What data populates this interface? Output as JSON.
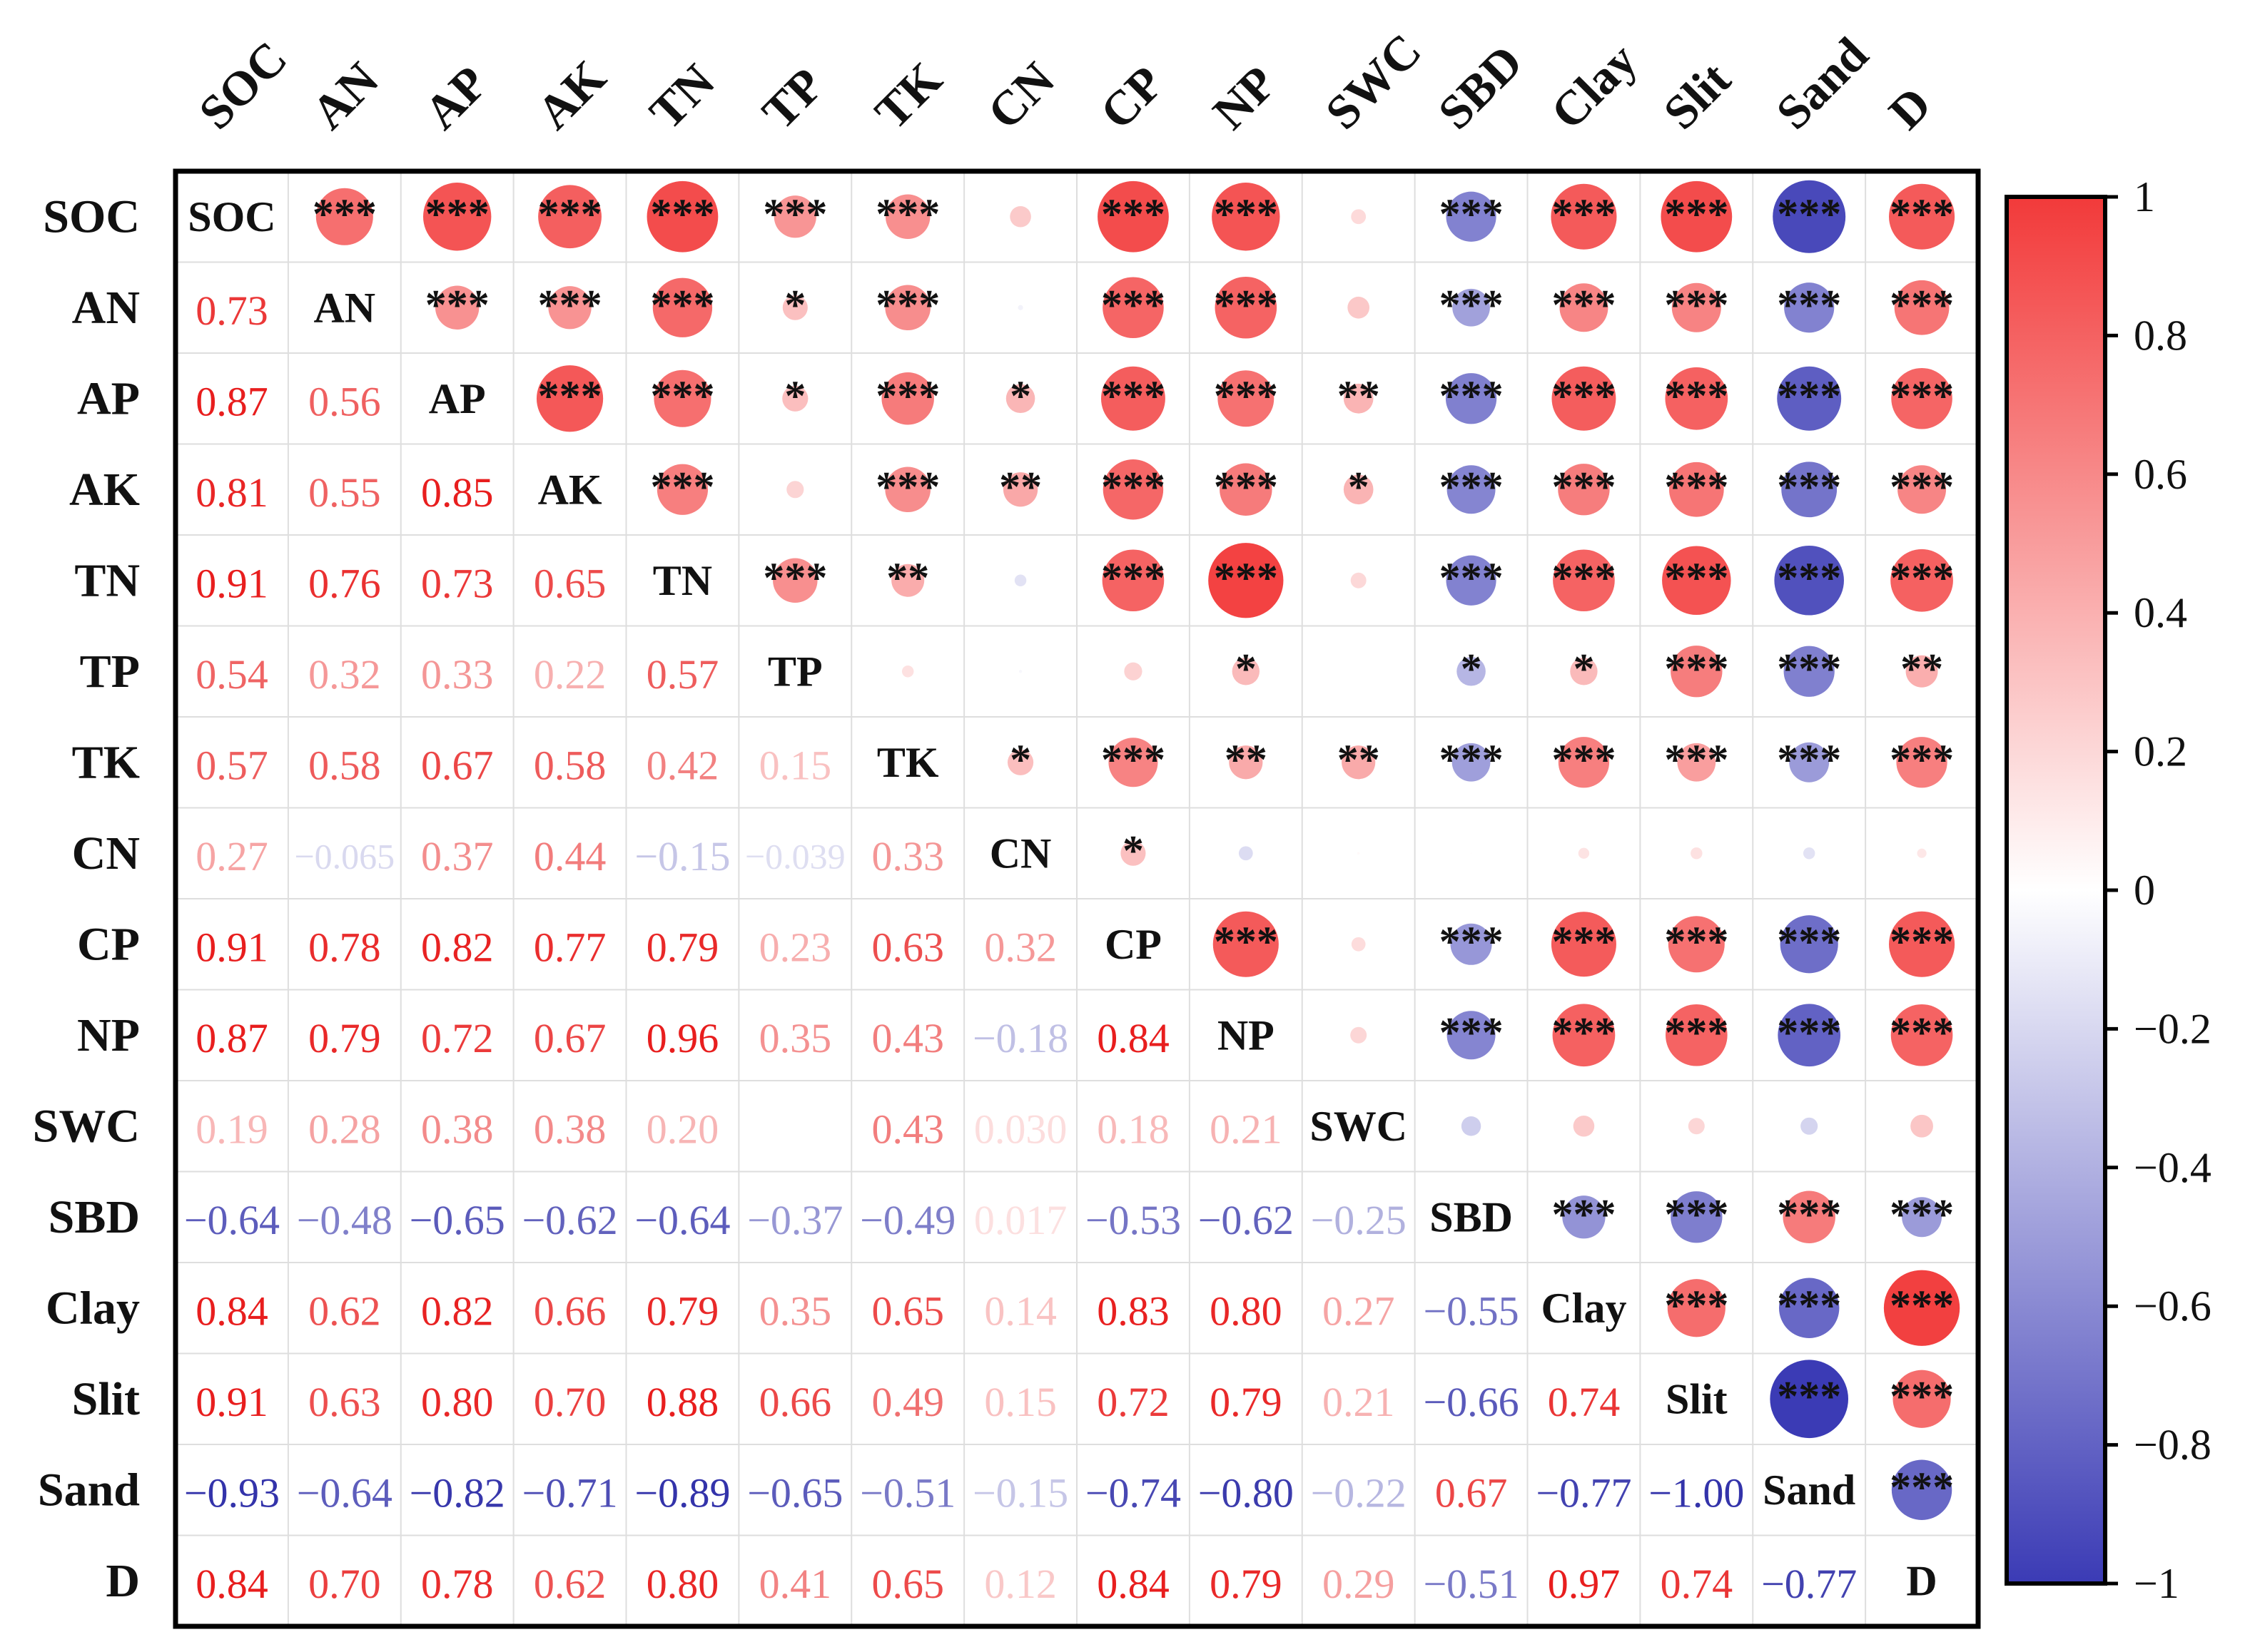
{
  "chart_data": {
    "type": "heatmap",
    "title": "",
    "variables": [
      "SOC",
      "AN",
      "AP",
      "AK",
      "TN",
      "TP",
      "TK",
      "CN",
      "CP",
      "NP",
      "SWC",
      "SBD",
      "Clay",
      "Slit",
      "Sand",
      "D"
    ],
    "correlation_matrix": [
      [
        1,
        0.73,
        0.87,
        0.81,
        0.91,
        0.54,
        0.57,
        0.27,
        0.91,
        0.87,
        0.19,
        -0.64,
        0.84,
        0.91,
        -0.93,
        0.84
      ],
      [
        0.73,
        1,
        0.56,
        0.55,
        0.76,
        0.32,
        0.58,
        -0.065,
        0.78,
        0.79,
        0.28,
        -0.48,
        0.62,
        0.63,
        -0.64,
        0.7
      ],
      [
        0.87,
        0.56,
        1,
        0.85,
        0.73,
        0.33,
        0.67,
        0.37,
        0.82,
        0.72,
        0.38,
        -0.65,
        0.82,
        0.8,
        -0.82,
        0.78
      ],
      [
        0.81,
        0.55,
        0.85,
        1,
        0.65,
        0.22,
        0.58,
        0.44,
        0.77,
        0.67,
        0.38,
        -0.62,
        0.66,
        0.7,
        -0.71,
        0.62
      ],
      [
        0.91,
        0.76,
        0.73,
        0.65,
        1,
        0.57,
        0.42,
        -0.15,
        0.79,
        0.96,
        0.2,
        -0.64,
        0.79,
        0.88,
        -0.89,
        0.8
      ],
      [
        0.54,
        0.32,
        0.33,
        0.22,
        0.57,
        1,
        0.15,
        -0.039,
        0.23,
        0.35,
        0.0,
        -0.37,
        0.35,
        0.66,
        -0.65,
        0.41
      ],
      [
        0.57,
        0.58,
        0.67,
        0.58,
        0.42,
        0.15,
        1,
        0.33,
        0.63,
        0.43,
        0.43,
        -0.49,
        0.65,
        0.49,
        -0.51,
        0.65
      ],
      [
        0.27,
        -0.065,
        0.37,
        0.44,
        -0.15,
        -0.039,
        0.33,
        1,
        0.32,
        -0.18,
        0.03,
        0.017,
        0.14,
        0.15,
        -0.15,
        0.12
      ],
      [
        0.91,
        0.78,
        0.82,
        0.77,
        0.79,
        0.23,
        0.63,
        0.32,
        1,
        0.84,
        0.18,
        -0.53,
        0.83,
        0.72,
        -0.74,
        0.84
      ],
      [
        0.87,
        0.79,
        0.72,
        0.67,
        0.96,
        0.35,
        0.43,
        -0.18,
        0.84,
        1,
        0.21,
        -0.62,
        0.8,
        0.79,
        -0.8,
        0.79
      ],
      [
        0.19,
        0.28,
        0.38,
        0.38,
        0.2,
        0.0,
        0.43,
        0.03,
        0.18,
        0.21,
        1,
        -0.25,
        0.27,
        0.21,
        -0.22,
        0.29
      ],
      [
        -0.64,
        -0.48,
        -0.65,
        -0.62,
        -0.64,
        -0.37,
        -0.49,
        0.017,
        -0.53,
        -0.62,
        -0.25,
        1,
        -0.55,
        -0.66,
        0.67,
        -0.51
      ],
      [
        0.84,
        0.62,
        0.82,
        0.66,
        0.79,
        0.35,
        0.65,
        0.14,
        0.83,
        0.8,
        0.27,
        -0.55,
        1,
        0.74,
        -0.77,
        0.97
      ],
      [
        0.91,
        0.63,
        0.8,
        0.7,
        0.88,
        0.66,
        0.49,
        0.15,
        0.72,
        0.79,
        0.21,
        -0.66,
        0.74,
        1,
        -1.0,
        0.74
      ],
      [
        -0.93,
        -0.64,
        -0.82,
        -0.71,
        -0.89,
        -0.65,
        -0.51,
        -0.15,
        -0.74,
        -0.8,
        -0.22,
        0.67,
        -0.77,
        -1.0,
        1,
        -0.77
      ],
      [
        0.84,
        0.7,
        0.78,
        0.62,
        0.8,
        0.41,
        0.65,
        0.12,
        0.84,
        0.79,
        0.29,
        -0.51,
        0.97,
        0.74,
        -0.77,
        1
      ]
    ],
    "lower_labels": [
      [
        "",
        "",
        "",
        "",
        "",
        "",
        "",
        "",
        "",
        "",
        "",
        "",
        "",
        "",
        "",
        ""
      ],
      [
        "0.73",
        "",
        "",
        "",
        "",
        "",
        "",
        "",
        "",
        "",
        "",
        "",
        "",
        "",
        "",
        ""
      ],
      [
        "0.87",
        "0.56",
        "",
        "",
        "",
        "",
        "",
        "",
        "",
        "",
        "",
        "",
        "",
        "",
        "",
        ""
      ],
      [
        "0.81",
        "0.55",
        "0.85",
        "",
        "",
        "",
        "",
        "",
        "",
        "",
        "",
        "",
        "",
        "",
        "",
        ""
      ],
      [
        "0.91",
        "0.76",
        "0.73",
        "0.65",
        "",
        "",
        "",
        "",
        "",
        "",
        "",
        "",
        "",
        "",
        "",
        ""
      ],
      [
        "0.54",
        "0.32",
        "0.33",
        "0.22",
        "0.57",
        "",
        "",
        "",
        "",
        "",
        "",
        "",
        "",
        "",
        "",
        ""
      ],
      [
        "0.57",
        "0.58",
        "0.67",
        "0.58",
        "0.42",
        "0.15",
        "",
        "",
        "",
        "",
        "",
        "",
        "",
        "",
        "",
        ""
      ],
      [
        "0.27",
        "−0.065",
        "0.37",
        "0.44",
        "−0.15",
        "−0.039",
        "0.33",
        "",
        "",
        "",
        "",
        "",
        "",
        "",
        "",
        ""
      ],
      [
        "0.91",
        "0.78",
        "0.82",
        "0.77",
        "0.79",
        "0.23",
        "0.63",
        "0.32",
        "",
        "",
        "",
        "",
        "",
        "",
        "",
        ""
      ],
      [
        "0.87",
        "0.79",
        "0.72",
        "0.67",
        "0.96",
        "0.35",
        "0.43",
        "−0.18",
        "0.84",
        "",
        "",
        "",
        "",
        "",
        "",
        ""
      ],
      [
        "0.19",
        "0.28",
        "0.38",
        "0.38",
        "0.20",
        "",
        "0.43",
        "0.030",
        "0.18",
        "0.21",
        "",
        "",
        "",
        "",
        "",
        ""
      ],
      [
        "−0.64",
        "−0.48",
        "−0.65",
        "−0.62",
        "−0.64",
        "−0.37",
        "−0.49",
        "0.017",
        "−0.53",
        "−0.62",
        "−0.25",
        "",
        "",
        "",
        "",
        ""
      ],
      [
        "0.84",
        "0.62",
        "0.82",
        "0.66",
        "0.79",
        "0.35",
        "0.65",
        "0.14",
        "0.83",
        "0.80",
        "0.27",
        "−0.55",
        "",
        "",
        "",
        ""
      ],
      [
        "0.91",
        "0.63",
        "0.80",
        "0.70",
        "0.88",
        "0.66",
        "0.49",
        "0.15",
        "0.72",
        "0.79",
        "0.21",
        "−0.66",
        "0.74",
        "",
        "",
        ""
      ],
      [
        "−0.93",
        "−0.64",
        "−0.82",
        "−0.71",
        "−0.89",
        "−0.65",
        "−0.51",
        "−0.15",
        "−0.74",
        "−0.80",
        "−0.22",
        "0.67",
        "−0.77",
        "−1.00",
        "",
        ""
      ],
      [
        "0.84",
        "0.70",
        "0.78",
        "0.62",
        "0.80",
        "0.41",
        "0.65",
        "0.12",
        "0.84",
        "0.79",
        "0.29",
        "−0.51",
        "0.97",
        "0.74",
        "−0.77",
        ""
      ]
    ],
    "significance": [
      [
        "",
        "***",
        "***",
        "***",
        "***",
        "***",
        "***",
        "",
        "***",
        "***",
        "",
        "***",
        "***",
        "***",
        "***",
        "***"
      ],
      [
        "",
        "",
        "***",
        "***",
        "***",
        "*",
        "***",
        "",
        "***",
        "***",
        "",
        "***",
        "***",
        "***",
        "***",
        "***"
      ],
      [
        "",
        "",
        "",
        "***",
        "***",
        "*",
        "***",
        "*",
        "***",
        "***",
        "**",
        "***",
        "***",
        "***",
        "***",
        "***"
      ],
      [
        "",
        "",
        "",
        "",
        "***",
        "",
        "***",
        "**",
        "***",
        "***",
        "*",
        "***",
        "***",
        "***",
        "***",
        "***"
      ],
      [
        "",
        "",
        "",
        "",
        "",
        "***",
        "**",
        "",
        "***",
        "***",
        "",
        "***",
        "***",
        "***",
        "***",
        "***"
      ],
      [
        "",
        "",
        "",
        "",
        "",
        "",
        "",
        "",
        "",
        "*",
        "",
        "*",
        "*",
        "***",
        "***",
        "**"
      ],
      [
        "",
        "",
        "",
        "",
        "",
        "",
        "",
        "*",
        "***",
        "**",
        "**",
        "***",
        "***",
        "***",
        "***",
        "***"
      ],
      [
        "",
        "",
        "",
        "",
        "",
        "",
        "",
        "",
        "*",
        "",
        "",
        "",
        "",
        "",
        "",
        ""
      ],
      [
        "",
        "",
        "",
        "",
        "",
        "",
        "",
        "",
        "",
        "***",
        "",
        "***",
        "***",
        "***",
        "***",
        "***"
      ],
      [
        "",
        "",
        "",
        "",
        "",
        "",
        "",
        "",
        "",
        "",
        "",
        "***",
        "***",
        "***",
        "***",
        "***"
      ],
      [
        "",
        "",
        "",
        "",
        "",
        "",
        "",
        "",
        "",
        "",
        "",
        "",
        "",
        "",
        "",
        ""
      ],
      [
        "",
        "",
        "",
        "",
        "",
        "",
        "",
        "",
        "",
        "",
        "",
        "",
        "***",
        "***",
        "***",
        "***"
      ],
      [
        "",
        "",
        "",
        "",
        "",
        "",
        "",
        "",
        "",
        "",
        "",
        "",
        "",
        "***",
        "***",
        "***"
      ],
      [
        "",
        "",
        "",
        "",
        "",
        "",
        "",
        "",
        "",
        "",
        "",
        "",
        "",
        "",
        "***",
        "***"
      ],
      [
        "",
        "",
        "",
        "",
        "",
        "",
        "",
        "",
        "",
        "",
        "",
        "",
        "",
        "",
        "",
        "***"
      ],
      [
        "",
        "",
        "",
        "",
        "",
        "",
        "",
        "",
        "",
        "",
        "",
        "",
        "",
        "",
        "",
        ""
      ]
    ],
    "lower_triangle": "correlation coefficient text",
    "upper_triangle": "circle size and color by correlation, with significance stars",
    "diagonal": "variable names",
    "color_scale": {
      "min": -1,
      "max": 1,
      "colors": {
        "negative": "#3B3BB5",
        "zero": "#FFFFFF",
        "positive": "#F23A3A"
      },
      "ticks": [
        "1",
        "0.8",
        "0.6",
        "0.4",
        "0.2",
        "0",
        "−0.2",
        "−0.4",
        "−0.6",
        "−0.8",
        "−1"
      ],
      "tick_values": [
        1,
        0.8,
        0.6,
        0.4,
        0.2,
        0,
        -0.2,
        -0.4,
        -0.6,
        -0.8,
        -1
      ]
    },
    "legend_position": "right"
  }
}
